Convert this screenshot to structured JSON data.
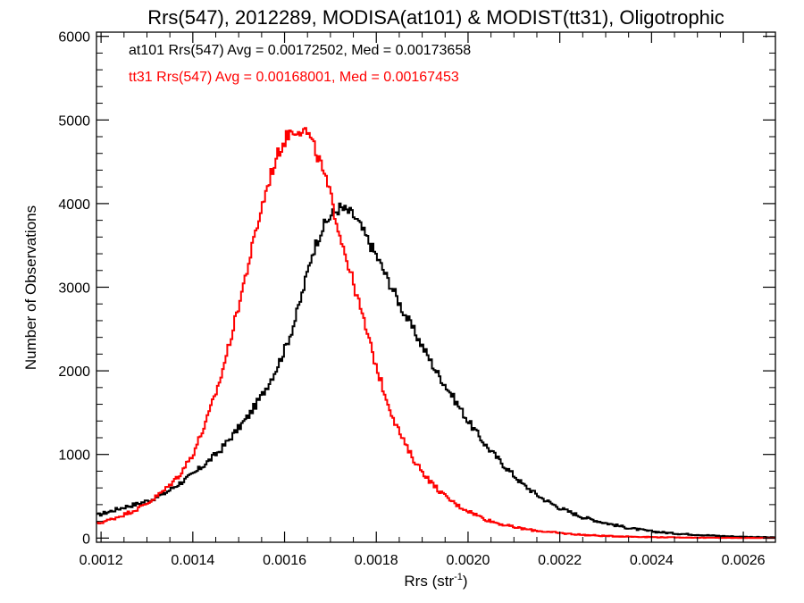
{
  "chart_data": {
    "type": "line",
    "step": true,
    "title": "Rrs(547), 2012289, MODISA(at101) & MODIST(tt31), Oligotrophic",
    "xlabel": "Rrs (str",
    "xlabel_sup": "-1",
    "xlabel_end": ")",
    "ylabel": "Number of Observations",
    "xlim": [
      0.00119,
      0.00267
    ],
    "ylim": [
      -50,
      6050
    ],
    "xticks": [
      0.0012,
      0.0014,
      0.0016,
      0.0018,
      0.002,
      0.0022,
      0.0024,
      0.0026
    ],
    "xtick_labels": [
      "0.0012",
      "0.0014",
      "0.0016",
      "0.0018",
      "0.0020",
      "0.0022",
      "0.0024",
      "0.0026"
    ],
    "yticks": [
      0,
      1000,
      2000,
      3000,
      4000,
      5000,
      6000
    ],
    "ytick_labels": [
      "0",
      "1000",
      "2000",
      "3000",
      "4000",
      "5000",
      "6000"
    ],
    "annotations": [
      {
        "text": "at101 Rrs(547) Avg = 0.00172502, Med = 0.00173658",
        "color": "#000000"
      },
      {
        "text": "tt31 Rrs(547) Avg = 0.00168001, Med = 0.00167453",
        "color": "#ff0000"
      }
    ],
    "series": [
      {
        "color": "#000000",
        "x": [
          0.00119,
          0.00122,
          0.00125,
          0.00128,
          0.00131,
          0.00134,
          0.00137,
          0.0014,
          0.00143,
          0.00146,
          0.00149,
          0.00152,
          0.00155,
          0.00158,
          0.0016,
          0.00162,
          0.00164,
          0.00166,
          0.00168,
          0.0017,
          0.00172,
          0.00174,
          0.00175,
          0.00176,
          0.00178,
          0.0018,
          0.00182,
          0.00184,
          0.00186,
          0.00188,
          0.0019,
          0.00193,
          0.00196,
          0.002,
          0.00204,
          0.00208,
          0.00212,
          0.00216,
          0.0022,
          0.00225,
          0.0023,
          0.00235,
          0.0024,
          0.00245,
          0.0025,
          0.00255,
          0.0026,
          0.00267
        ],
        "y": [
          270,
          320,
          370,
          410,
          460,
          540,
          650,
          760,
          900,
          1050,
          1250,
          1450,
          1700,
          2000,
          2250,
          2550,
          2950,
          3400,
          3680,
          3850,
          3950,
          3900,
          3860,
          3780,
          3580,
          3380,
          3150,
          2930,
          2700,
          2500,
          2300,
          2000,
          1750,
          1400,
          1100,
          860,
          640,
          480,
          360,
          250,
          180,
          120,
          80,
          55,
          40,
          25,
          15,
          8
        ]
      },
      {
        "color": "#ff0000",
        "x": [
          0.00119,
          0.00122,
          0.00125,
          0.00128,
          0.00131,
          0.00134,
          0.00137,
          0.0014,
          0.00143,
          0.00146,
          0.00149,
          0.00152,
          0.00155,
          0.00157,
          0.00159,
          0.00161,
          0.00163,
          0.00164,
          0.00165,
          0.00166,
          0.00167,
          0.00168,
          0.0017,
          0.00172,
          0.00174,
          0.00176,
          0.00178,
          0.0018,
          0.00182,
          0.00184,
          0.00186,
          0.00188,
          0.0019,
          0.00192,
          0.00195,
          0.00198,
          0.00201,
          0.00204,
          0.00207,
          0.0021,
          0.00214,
          0.00218,
          0.00222,
          0.00226,
          0.0023,
          0.00235,
          0.0024,
          0.00245,
          0.0025,
          0.00255,
          0.0026,
          0.00267
        ],
        "y": [
          170,
          220,
          280,
          350,
          450,
          580,
          750,
          1000,
          1400,
          1900,
          2550,
          3250,
          3950,
          4350,
          4650,
          4850,
          4900,
          4880,
          4850,
          4720,
          4600,
          4450,
          4100,
          3650,
          3250,
          2850,
          2450,
          2050,
          1700,
          1400,
          1150,
          950,
          800,
          660,
          500,
          380,
          300,
          220,
          170,
          130,
          95,
          70,
          50,
          35,
          25,
          18,
          12,
          8,
          5,
          3,
          2,
          1
        ]
      }
    ]
  }
}
